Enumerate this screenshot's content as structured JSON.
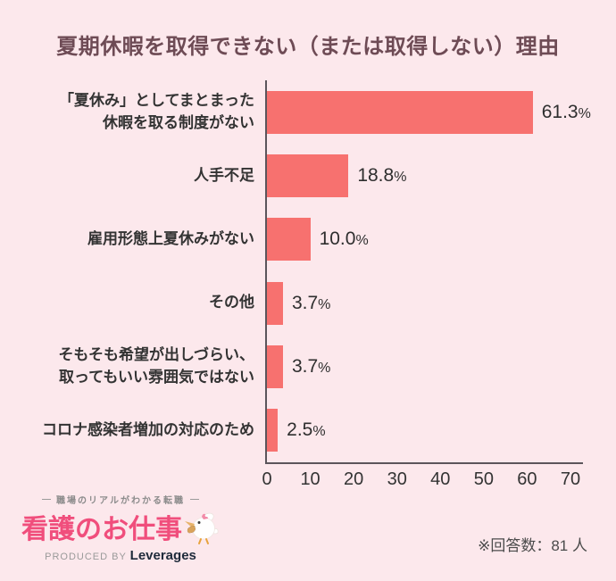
{
  "chart_data": {
    "type": "bar",
    "orientation": "horizontal",
    "title": "夏期休暇を取得できない（または取得しない）理由",
    "categories": [
      "「夏休み」としてまとまった\n休暇を取る制度がない",
      "人手不足",
      "雇用形態上夏休みがない",
      "その他",
      "そもそも希望が出しづらい、\n取ってもいい雰囲気ではない",
      "コロナ感染者増加の対応のため"
    ],
    "values": [
      61.3,
      18.8,
      10.0,
      3.7,
      3.7,
      2.5
    ],
    "value_label_suffix": "%",
    "xlabel": "",
    "ylabel": "",
    "xlim": [
      0,
      70
    ],
    "x_ticks": [
      0,
      10,
      20,
      30,
      40,
      50,
      60,
      70
    ],
    "grid": false,
    "legend_position": "none",
    "bar_color": "#f7716f"
  },
  "footer": {
    "logo": {
      "tagline": "職場のリアルがわかる転職",
      "brand": "看護のお仕事",
      "produced_by": "PRODUCED BY",
      "company": "Leverages",
      "mascot": "white-bird-icon"
    },
    "note": "※回答数：81 人"
  },
  "colors": {
    "background": "#fce8ec",
    "bar": "#f7716f",
    "title_text": "#6e4b55",
    "label_text": "#333333",
    "axis_line": "#5b555b",
    "logo_pink": "#f04e7c",
    "tagline_gray": "#8b8b8b",
    "company_navy": "#1e2a3a",
    "note_text": "#4b4b4b"
  }
}
